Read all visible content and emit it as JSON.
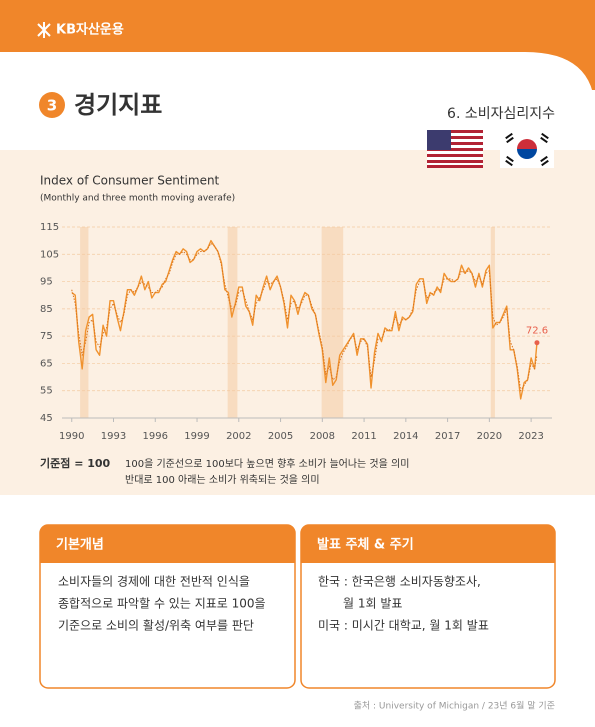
{
  "header": {
    "brand": "KB자산운용"
  },
  "section": {
    "number": "3",
    "title": "경기지표",
    "subtitle": "6. 소비자심리지수"
  },
  "chart_data": {
    "type": "line",
    "title": "Index of Consumer Sentiment",
    "subtitle": "(Monthly and three month moving averafe)",
    "x": [
      1990,
      1990.25,
      1990.5,
      1990.75,
      1991,
      1991.25,
      1991.5,
      1991.75,
      1992,
      1992.25,
      1992.5,
      1992.75,
      1993,
      1993.25,
      1993.5,
      1993.75,
      1994,
      1994.25,
      1994.5,
      1994.75,
      1995,
      1995.25,
      1995.5,
      1995.75,
      1996,
      1996.25,
      1996.5,
      1996.75,
      1997,
      1997.25,
      1997.5,
      1997.75,
      1998,
      1998.25,
      1998.5,
      1998.75,
      1999,
      1999.25,
      1999.5,
      1999.75,
      2000,
      2000.25,
      2000.5,
      2000.75,
      2001,
      2001.25,
      2001.5,
      2001.75,
      2002,
      2002.25,
      2002.5,
      2002.75,
      2003,
      2003.25,
      2003.5,
      2003.75,
      2004,
      2004.25,
      2004.5,
      2004.75,
      2005,
      2005.25,
      2005.5,
      2005.75,
      2006,
      2006.25,
      2006.5,
      2006.75,
      2007,
      2007.25,
      2007.5,
      2007.75,
      2008,
      2008.25,
      2008.5,
      2008.75,
      2009,
      2009.25,
      2009.5,
      2009.75,
      2010,
      2010.25,
      2010.5,
      2010.75,
      2011,
      2011.25,
      2011.5,
      2011.75,
      2012,
      2012.25,
      2012.5,
      2012.75,
      2013,
      2013.25,
      2013.5,
      2013.75,
      2014,
      2014.25,
      2014.5,
      2014.75,
      2015,
      2015.25,
      2015.5,
      2015.75,
      2016,
      2016.25,
      2016.5,
      2016.75,
      2017,
      2017.25,
      2017.5,
      2017.75,
      2018,
      2018.25,
      2018.5,
      2018.75,
      2019,
      2019.25,
      2019.5,
      2019.75,
      2020,
      2020.25,
      2020.5,
      2020.75,
      2021,
      2021.25,
      2021.5,
      2021.75,
      2022,
      2022.25,
      2022.5,
      2022.75,
      2023,
      2023.25,
      2023.42
    ],
    "series": [
      {
        "color": "#f0922e",
        "style": "solid",
        "values": [
          91,
          90,
          73,
          63,
          77,
          82,
          83,
          70,
          68,
          79,
          75,
          88,
          88,
          82,
          77,
          84,
          92,
          92,
          90,
          93,
          97,
          92,
          95,
          89,
          91,
          91,
          94,
          95,
          99,
          103,
          106,
          105,
          107,
          106,
          102,
          103,
          106,
          107,
          106,
          107,
          110,
          108,
          106,
          102,
          92,
          91,
          82,
          87,
          93,
          93,
          86,
          84,
          79,
          90,
          88,
          93,
          97,
          92,
          95,
          97,
          93,
          87,
          78,
          90,
          88,
          83,
          88,
          91,
          90,
          85,
          83,
          76,
          70,
          58,
          67,
          57,
          59,
          68,
          70,
          72,
          74,
          76,
          68,
          74,
          74,
          72,
          56,
          69,
          76,
          73,
          78,
          77,
          77,
          84,
          77,
          82,
          81,
          82,
          84,
          94,
          96,
          96,
          87,
          91,
          90,
          93,
          91,
          98,
          96,
          95,
          95,
          96,
          101,
          98,
          100,
          98,
          93,
          98,
          93,
          99,
          101,
          78,
          80,
          80,
          83,
          86,
          70,
          70,
          63,
          52,
          58,
          59,
          67,
          63,
          72.6
        ]
      },
      {
        "color": "#d9731c",
        "style": "dotted",
        "values": [
          92,
          87,
          76,
          68,
          73,
          80,
          81,
          73,
          71,
          76,
          78,
          85,
          87,
          83,
          80,
          83,
          90,
          92,
          91,
          93,
          95,
          94,
          93,
          91,
          91,
          92,
          93,
          96,
          98,
          102,
          105,
          105,
          106,
          105,
          103,
          103,
          105,
          106,
          106,
          107,
          109,
          108,
          106,
          101,
          94,
          89,
          85,
          86,
          91,
          92,
          88,
          84,
          81,
          87,
          89,
          92,
          95,
          94,
          95,
          96,
          93,
          88,
          81,
          87,
          88,
          85,
          87,
          90,
          90,
          86,
          83,
          77,
          71,
          61,
          64,
          59,
          60,
          66,
          69,
          71,
          74,
          75,
          70,
          73,
          74,
          71,
          60,
          66,
          74,
          74,
          77,
          77,
          78,
          82,
          79,
          81,
          81,
          82,
          85,
          92,
          95,
          95,
          89,
          90,
          91,
          92,
          92,
          96,
          96,
          96,
          95,
          96,
          99,
          98,
          99,
          98,
          95,
          97,
          94,
          98,
          99,
          82,
          79,
          80,
          82,
          85,
          73,
          70,
          64,
          55,
          57,
          59,
          65,
          63,
          68
        ]
      }
    ],
    "shaded_ranges": [
      [
        1990.6,
        1991.2
      ],
      [
        2001.2,
        2001.9
      ],
      [
        2007.95,
        2009.5
      ],
      [
        2020.1,
        2020.4
      ]
    ],
    "shade_color": "#f8dcc0",
    "xlim": [
      1989.3,
      2024.5
    ],
    "xticks": [
      1990,
      1993,
      1996,
      1999,
      2002,
      2005,
      2008,
      2011,
      2014,
      2017,
      2020,
      2023
    ],
    "ylim": [
      45,
      115
    ],
    "yticks": [
      45,
      55,
      65,
      75,
      85,
      95,
      105,
      115
    ],
    "grid": true,
    "label_color": "#e8604c"
  },
  "note": {
    "label": "기준점 = 100",
    "lines": [
      "100을 기준선으로 100보다 높으면 향후 소비가 늘어나는 것을 의미",
      "반대로 100 아래는 소비가 위축되는 것을 의미"
    ]
  },
  "boxes": [
    {
      "title": "기본개념",
      "lines": [
        "소비자들의 경제에 대한 전반적 인식을",
        "종합적으로 파악할 수 있는 지표로 100을",
        "기준으로 소비의 활성/위축 여부를 판단"
      ]
    },
    {
      "title": "발표 주체 & 주기",
      "lines": [
        "한국 : 한국은행 소비자동향조사,",
        "월 1회 발표",
        "미국 : 미시간 대학교, 월 1회 발표"
      ]
    }
  ],
  "source": "출처 : University of Michigan / 23년 6월 말 기준"
}
